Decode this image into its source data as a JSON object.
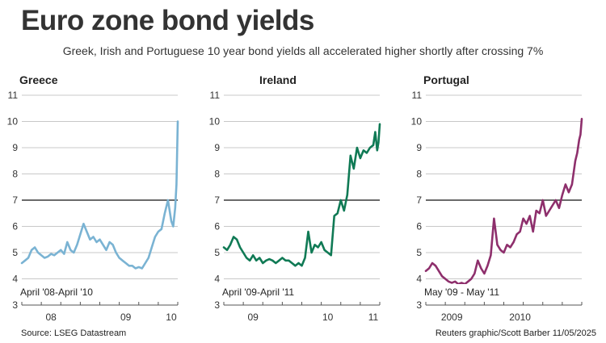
{
  "title": "Euro zone bond yields",
  "subtitle": "Greek, Irish and Portuguese 10 year bond yields all accelerated higher shortly after crossing 7%",
  "source": "Source: LSEG Datastream",
  "credit": "Reuters graphic/Scott Barber 11/05/2025",
  "colors": {
    "greece": "#7ab3d3",
    "ireland": "#107a55",
    "portugal": "#8e2f6c",
    "reference": "#111111",
    "grid": "#c8c8c8"
  },
  "chart_data": [
    {
      "type": "line",
      "title": "Greece",
      "note": "April '08-April '10",
      "ylim": [
        3,
        11
      ],
      "yticks": [
        3,
        4,
        5,
        6,
        7,
        8,
        9,
        10,
        11
      ],
      "reference_line": 7,
      "xlim": [
        0,
        24
      ],
      "xtick_marks": [
        0,
        3,
        6,
        9,
        12,
        15,
        18,
        21,
        24
      ],
      "xlabels": [
        {
          "x": 4.5,
          "label": "08"
        },
        {
          "x": 16,
          "label": "09"
        },
        {
          "x": 23,
          "label": "10"
        }
      ],
      "series": [
        {
          "color": "greece",
          "x": [
            0,
            0.5,
            1,
            1.5,
            2,
            2.5,
            3,
            3.5,
            4,
            4.5,
            5,
            5.5,
            6,
            6.5,
            7,
            7.5,
            8,
            8.5,
            9,
            9.5,
            10,
            10.5,
            11,
            11.5,
            12,
            12.5,
            13,
            13.5,
            14,
            14.5,
            15,
            15.5,
            16,
            16.5,
            17,
            17.5,
            18,
            18.5,
            19,
            19.5,
            20,
            20.5,
            21,
            21.5,
            22,
            22.5,
            23,
            23.3,
            23.6,
            23.8,
            24
          ],
          "y": [
            4.6,
            4.7,
            4.8,
            5.1,
            5.2,
            5.0,
            4.9,
            4.8,
            4.85,
            4.95,
            4.9,
            5.0,
            5.1,
            4.95,
            5.4,
            5.1,
            5.0,
            5.3,
            5.7,
            6.1,
            5.8,
            5.5,
            5.6,
            5.4,
            5.5,
            5.3,
            5.1,
            5.4,
            5.3,
            5.0,
            4.8,
            4.7,
            4.6,
            4.5,
            4.5,
            4.4,
            4.45,
            4.4,
            4.6,
            4.8,
            5.2,
            5.6,
            5.8,
            5.9,
            6.5,
            7.0,
            6.2,
            6.0,
            6.7,
            7.6,
            10.0
          ]
        }
      ]
    },
    {
      "type": "line",
      "title": "Ireland",
      "note": "April '09-April '11",
      "ylim": [
        3,
        11
      ],
      "yticks": [
        3,
        4,
        5,
        6,
        7,
        8,
        9,
        10,
        11
      ],
      "reference_line": 7,
      "xlim": [
        0,
        24
      ],
      "xtick_marks": [
        0,
        3,
        6,
        9,
        12,
        15,
        18,
        21,
        24
      ],
      "xlabels": [
        {
          "x": 4.5,
          "label": "09"
        },
        {
          "x": 16,
          "label": "10"
        },
        {
          "x": 23,
          "label": "11"
        }
      ],
      "series": [
        {
          "color": "ireland",
          "x": [
            0,
            0.5,
            1,
            1.5,
            2,
            2.5,
            3,
            3.5,
            4,
            4.5,
            5,
            5.5,
            6,
            6.5,
            7,
            7.5,
            8,
            8.5,
            9,
            9.5,
            10,
            10.5,
            11,
            11.5,
            12,
            12.5,
            13,
            13.5,
            14,
            14.5,
            15,
            15.5,
            16,
            16.5,
            17,
            17.5,
            18,
            18.5,
            19,
            19.5,
            20,
            20.5,
            21,
            21.5,
            22,
            22.5,
            23,
            23.3,
            23.6,
            23.8,
            24
          ],
          "y": [
            5.2,
            5.1,
            5.3,
            5.6,
            5.5,
            5.2,
            5.0,
            4.8,
            4.7,
            4.9,
            4.7,
            4.8,
            4.6,
            4.7,
            4.75,
            4.7,
            4.6,
            4.7,
            4.8,
            4.7,
            4.7,
            4.6,
            4.5,
            4.6,
            4.5,
            4.8,
            5.8,
            5.0,
            5.3,
            5.2,
            5.4,
            5.1,
            5.0,
            4.9,
            6.4,
            6.5,
            7.0,
            6.6,
            7.2,
            8.7,
            8.2,
            9.0,
            8.6,
            8.9,
            8.8,
            9.0,
            9.1,
            9.6,
            8.9,
            9.2,
            9.9
          ]
        }
      ]
    },
    {
      "type": "line",
      "title": "Portugal",
      "note": "May '09 - May '11",
      "ylim": [
        3,
        11
      ],
      "yticks": [
        3,
        4,
        5,
        6,
        7,
        8,
        9,
        10,
        11
      ],
      "reference_line": 7,
      "xlim": [
        0,
        24
      ],
      "xtick_marks": [
        0,
        3,
        6,
        9,
        12,
        15,
        18,
        21,
        24
      ],
      "xlabels": [
        {
          "x": 4,
          "label": "2009"
        },
        {
          "x": 14.5,
          "label": "2010"
        }
      ],
      "series": [
        {
          "color": "portugal",
          "x": [
            0,
            0.5,
            1,
            1.5,
            2,
            2.5,
            3,
            3.5,
            4,
            4.5,
            5,
            5.5,
            6,
            6.5,
            7,
            7.5,
            8,
            8.5,
            9,
            9.5,
            10,
            10.5,
            11,
            11.5,
            12,
            12.5,
            13,
            13.5,
            14,
            14.5,
            15,
            15.5,
            16,
            16.5,
            17,
            17.5,
            18,
            18.5,
            19,
            19.5,
            20,
            20.5,
            21,
            21.5,
            22,
            22.5,
            23,
            23.3,
            23.6,
            23.8,
            24
          ],
          "y": [
            4.3,
            4.4,
            4.6,
            4.5,
            4.3,
            4.1,
            4.0,
            3.9,
            3.85,
            3.9,
            3.8,
            3.85,
            3.8,
            3.9,
            4.0,
            4.2,
            4.7,
            4.4,
            4.2,
            4.5,
            4.9,
            6.3,
            5.3,
            5.1,
            5.0,
            5.3,
            5.2,
            5.4,
            5.7,
            5.8,
            6.3,
            6.1,
            6.4,
            5.8,
            6.6,
            6.5,
            7.0,
            6.4,
            6.6,
            6.8,
            7.0,
            6.7,
            7.2,
            7.6,
            7.3,
            7.6,
            8.5,
            8.8,
            9.3,
            9.5,
            10.1
          ]
        }
      ]
    }
  ]
}
